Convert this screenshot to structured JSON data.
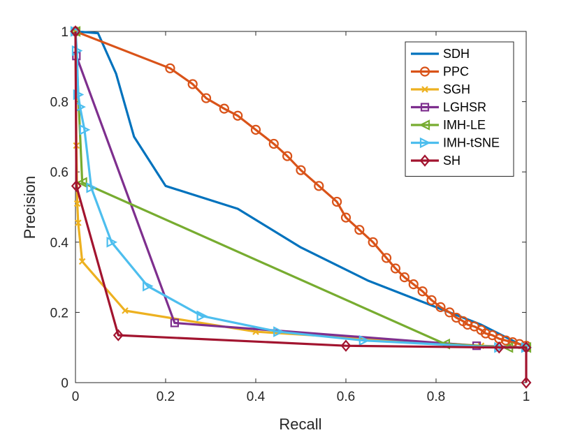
{
  "chart_data": {
    "type": "line",
    "title": "",
    "xlabel": "Recall",
    "ylabel": "Precision",
    "xlim": [
      0,
      1
    ],
    "ylim": [
      0,
      1
    ],
    "xticks": [
      0,
      0.2,
      0.4,
      0.6,
      0.8,
      1
    ],
    "yticks": [
      0,
      0.2,
      0.4,
      0.6,
      0.8,
      1
    ],
    "xtick_labels": [
      "0",
      "0.2",
      "0.4",
      "0.6",
      "0.8",
      "1"
    ],
    "ytick_labels": [
      "0",
      "0.2",
      "0.4",
      "0.6",
      "0.8",
      "1"
    ],
    "grid": false,
    "legend_position": "top-right",
    "series": [
      {
        "name": "SDH",
        "color": "#0072BD",
        "marker": "none",
        "x": [
          0,
          0.05,
          0.09,
          0.13,
          0.2,
          0.36,
          0.5,
          0.65,
          0.8,
          0.9,
          1.0
        ],
        "y": [
          1.0,
          0.995,
          0.88,
          0.7,
          0.56,
          0.495,
          0.385,
          0.29,
          0.215,
          0.165,
          0.1
        ]
      },
      {
        "name": "PPC",
        "color": "#D95319",
        "marker": "circle",
        "x": [
          0,
          0.21,
          0.26,
          0.29,
          0.33,
          0.36,
          0.4,
          0.44,
          0.47,
          0.5,
          0.54,
          0.58,
          0.6,
          0.63,
          0.66,
          0.69,
          0.71,
          0.73,
          0.75,
          0.77,
          0.79,
          0.81,
          0.83,
          0.845,
          0.86,
          0.87,
          0.885,
          0.9,
          0.91,
          0.925,
          0.94,
          0.955,
          0.97,
          0.985,
          1.0
        ],
        "y": [
          1.0,
          0.895,
          0.85,
          0.81,
          0.78,
          0.76,
          0.72,
          0.68,
          0.645,
          0.605,
          0.56,
          0.515,
          0.47,
          0.435,
          0.4,
          0.355,
          0.325,
          0.3,
          0.28,
          0.26,
          0.235,
          0.215,
          0.2,
          0.185,
          0.175,
          0.165,
          0.16,
          0.15,
          0.14,
          0.135,
          0.125,
          0.12,
          0.115,
          0.11,
          0.105
        ]
      },
      {
        "name": "SGH",
        "color": "#EDB120",
        "marker": "x",
        "x": [
          0,
          0.002,
          0.004,
          0.006,
          0.015,
          0.11,
          0.4,
          0.9,
          1.0
        ],
        "y": [
          1.0,
          0.675,
          0.51,
          0.455,
          0.345,
          0.205,
          0.145,
          0.105,
          0.1
        ]
      },
      {
        "name": "LGHSR",
        "color": "#7E2F8E",
        "marker": "square",
        "x": [
          0,
          0.002,
          0.22,
          0.89,
          1.0
        ],
        "y": [
          1.0,
          0.93,
          0.17,
          0.105,
          0.1
        ]
      },
      {
        "name": "IMH-LE",
        "color": "#77AC30",
        "marker": "triangle-left",
        "x": [
          0,
          0.015,
          0.82,
          0.96,
          1.0
        ],
        "y": [
          1.0,
          0.57,
          0.11,
          0.1,
          0.1
        ]
      },
      {
        "name": "IMH-tSNE",
        "color": "#4DBEEE",
        "marker": "triangle-right",
        "x": [
          0,
          0.003,
          0.006,
          0.01,
          0.02,
          0.035,
          0.08,
          0.16,
          0.28,
          0.45,
          0.64,
          0.94,
          1.0
        ],
        "y": [
          1.0,
          0.945,
          0.82,
          0.785,
          0.72,
          0.555,
          0.4,
          0.275,
          0.19,
          0.145,
          0.12,
          0.1,
          0.1
        ]
      },
      {
        "name": "SH",
        "color": "#A2142F",
        "marker": "diamond",
        "x": [
          0,
          0.002,
          0.095,
          0.6,
          0.94,
          1.0,
          1.0
        ],
        "y": [
          1.0,
          0.56,
          0.135,
          0.105,
          0.1,
          0.1,
          0
        ]
      }
    ]
  }
}
